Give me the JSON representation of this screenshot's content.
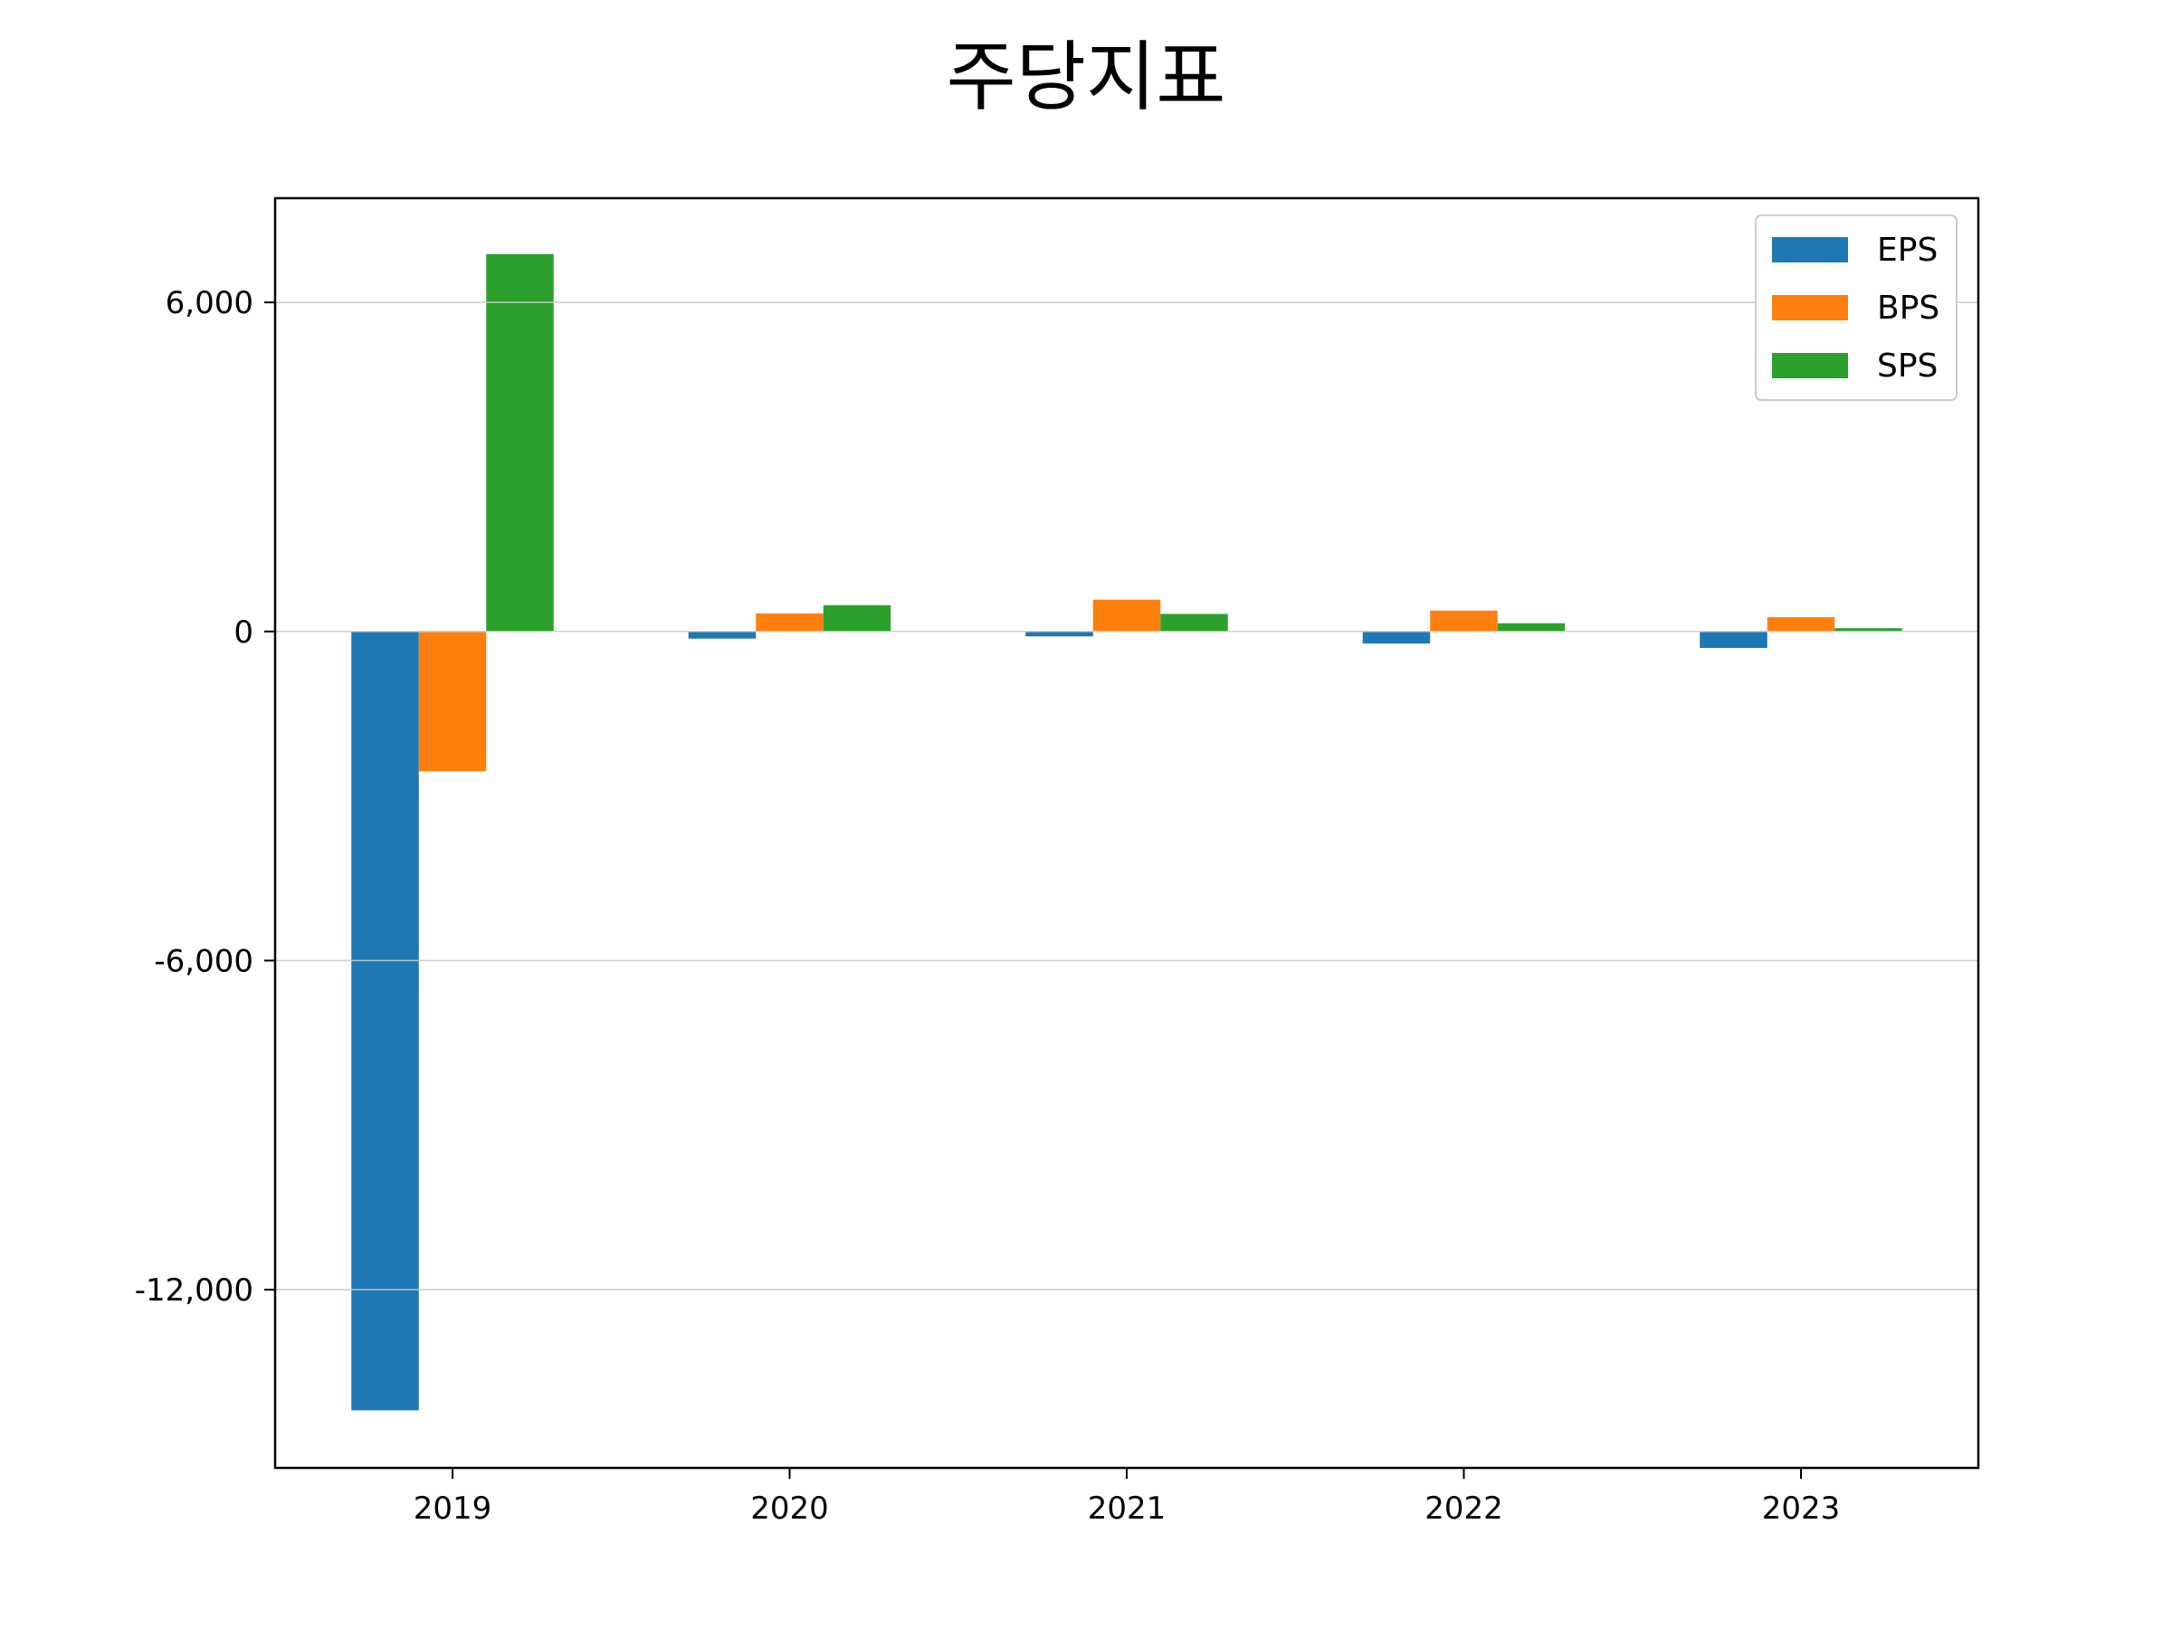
{
  "chart_data": {
    "type": "bar",
    "title": "주당지표",
    "xlabel": "",
    "ylabel": "",
    "categories": [
      "2019",
      "2020",
      "2021",
      "2022",
      "2023"
    ],
    "series": [
      {
        "name": "EPS",
        "color": "#1f77b4",
        "values": [
          -14200,
          -130,
          -90,
          -220,
          -300
        ]
      },
      {
        "name": "BPS",
        "color": "#ff7f0e",
        "values": [
          -2550,
          330,
          580,
          380,
          260
        ]
      },
      {
        "name": "SPS",
        "color": "#2ca02c",
        "values": [
          6880,
          480,
          320,
          150,
          60
        ]
      }
    ],
    "ylim": [
      -15250,
      7900
    ],
    "yticks": [
      6000,
      0,
      -6000,
      -12000
    ],
    "ytick_labels": [
      "6,000",
      "0",
      "-6,000",
      "-12,000"
    ],
    "grid": "horizontal",
    "legend": "top-right"
  }
}
